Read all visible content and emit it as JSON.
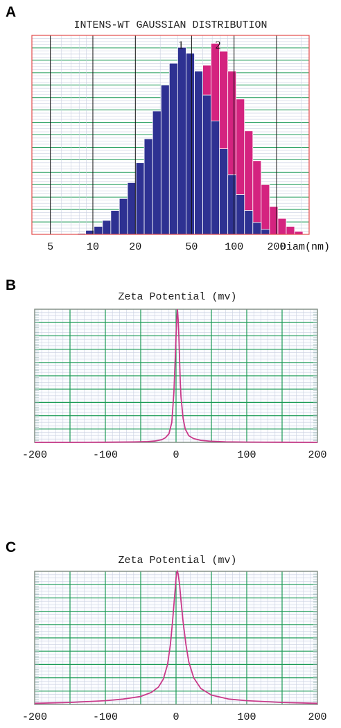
{
  "colors": {
    "series1": "#2e3192",
    "series2": "#d4237f",
    "grid_major": "#1a9a55",
    "grid_minor": "#c9cfe0",
    "frame_a": "#e34a4a",
    "curve_b": "#c93a8a"
  },
  "chart_data": [
    {
      "panel": "A",
      "type": "bar",
      "title": "INTENS-WT GAUSSIAN DISTRIBUTION",
      "x_scale": "log",
      "xlim": [
        3.7,
        340
      ],
      "x_ticks": [
        5,
        10,
        20,
        50,
        100,
        200
      ],
      "x_tick_labels": [
        "5",
        "10",
        "20",
        "50",
        "100",
        "200"
      ],
      "x_unit_label": "Diam(nm)",
      "ylim": [
        0,
        100
      ],
      "peak_labels": [
        {
          "text": "1",
          "x": 42
        },
        {
          "text": "2",
          "x": 77
        }
      ],
      "series": [
        {
          "name": "1",
          "color": "#2e3192",
          "bins": [
            {
              "x0": 7.8,
              "x1": 8.9,
              "y": 0.5
            },
            {
              "x0": 8.9,
              "x1": 10.2,
              "y": 2
            },
            {
              "x0": 10.2,
              "x1": 11.7,
              "y": 4
            },
            {
              "x0": 11.7,
              "x1": 13.4,
              "y": 7
            },
            {
              "x0": 13.4,
              "x1": 15.4,
              "y": 12
            },
            {
              "x0": 15.4,
              "x1": 17.6,
              "y": 18
            },
            {
              "x0": 17.6,
              "x1": 20.2,
              "y": 26
            },
            {
              "x0": 20.2,
              "x1": 23.1,
              "y": 36
            },
            {
              "x0": 23.1,
              "x1": 26.5,
              "y": 48
            },
            {
              "x0": 26.5,
              "x1": 30.4,
              "y": 62
            },
            {
              "x0": 30.4,
              "x1": 34.8,
              "y": 75
            },
            {
              "x0": 34.8,
              "x1": 39.9,
              "y": 86
            },
            {
              "x0": 39.9,
              "x1": 45.7,
              "y": 94
            },
            {
              "x0": 45.7,
              "x1": 52.4,
              "y": 91
            },
            {
              "x0": 52.4,
              "x1": 60,
              "y": 82
            },
            {
              "x0": 60,
              "x1": 68.7,
              "y": 70
            },
            {
              "x0": 68.7,
              "x1": 78.8,
              "y": 57
            },
            {
              "x0": 78.8,
              "x1": 90.3,
              "y": 43
            },
            {
              "x0": 90.3,
              "x1": 103.4,
              "y": 30
            },
            {
              "x0": 103.4,
              "x1": 118.5,
              "y": 20
            },
            {
              "x0": 118.5,
              "x1": 135.8,
              "y": 12
            },
            {
              "x0": 135.8,
              "x1": 155.6,
              "y": 6
            },
            {
              "x0": 155.6,
              "x1": 178.3,
              "y": 2.5
            }
          ]
        },
        {
          "name": "2",
          "color": "#d4237f",
          "bins": [
            {
              "x0": 60,
              "x1": 68.7,
              "y": 85
            },
            {
              "x0": 68.7,
              "x1": 78.8,
              "y": 96
            },
            {
              "x0": 78.8,
              "x1": 90.3,
              "y": 92
            },
            {
              "x0": 90.3,
              "x1": 103.4,
              "y": 82
            },
            {
              "x0": 103.4,
              "x1": 118.5,
              "y": 68
            },
            {
              "x0": 118.5,
              "x1": 135.8,
              "y": 52
            },
            {
              "x0": 135.8,
              "x1": 155.6,
              "y": 37
            },
            {
              "x0": 155.6,
              "x1": 178.3,
              "y": 25
            },
            {
              "x0": 178.3,
              "x1": 204.3,
              "y": 14
            },
            {
              "x0": 204.3,
              "x1": 234.1,
              "y": 8
            },
            {
              "x0": 234.1,
              "x1": 268.2,
              "y": 4
            },
            {
              "x0": 268.2,
              "x1": 307.3,
              "y": 1.5
            }
          ]
        }
      ]
    },
    {
      "panel": "B",
      "type": "line",
      "title": "Zeta Potential (mv)",
      "xlim": [
        -200,
        200
      ],
      "x_ticks": [
        -200,
        -100,
        0,
        100,
        200
      ],
      "x_tick_labels": [
        "-200",
        "-100",
        "0",
        "100",
        "200"
      ],
      "ylim": [
        0,
        100
      ],
      "series": [
        {
          "x": [
            -200,
            -150,
            -100,
            -60,
            -40,
            -30,
            -20,
            -15,
            -10,
            -6,
            -3,
            -1,
            0,
            1,
            2,
            3,
            4,
            5,
            6,
            7,
            10,
            13,
            18,
            25,
            35,
            50,
            70,
            100,
            150,
            200
          ],
          "y": [
            0,
            0,
            0.1,
            0.3,
            0.6,
            1,
            2,
            3.5,
            6.5,
            15,
            38,
            65,
            80,
            92,
            100,
            92,
            80,
            62,
            45,
            34,
            18,
            10,
            5,
            2.8,
            1.5,
            0.8,
            0.4,
            0.2,
            0.1,
            0
          ]
        }
      ]
    },
    {
      "panel": "C",
      "type": "line",
      "title": "Zeta Potential (mv)",
      "xlim": [
        -200,
        200
      ],
      "x_ticks": [
        -200,
        -100,
        0,
        100,
        200
      ],
      "x_tick_labels": [
        "-200",
        "-100",
        "0",
        "100",
        "200"
      ],
      "ylim": [
        0,
        100
      ],
      "series": [
        {
          "x": [
            -200,
            -150,
            -100,
            -75,
            -50,
            -35,
            -25,
            -18,
            -12,
            -8,
            -5,
            -3,
            -1,
            0,
            1,
            2,
            3,
            5,
            7,
            10,
            14,
            18,
            25,
            35,
            50,
            75,
            100,
            150,
            200
          ],
          "y": [
            0.8,
            1.5,
            2.8,
            4,
            6,
            9,
            13,
            19,
            30,
            45,
            62,
            75,
            88,
            95,
            99,
            100,
            98,
            90,
            78,
            62,
            45,
            32,
            20,
            12,
            7,
            4,
            2.8,
            1.5,
            0.8
          ]
        }
      ]
    }
  ]
}
